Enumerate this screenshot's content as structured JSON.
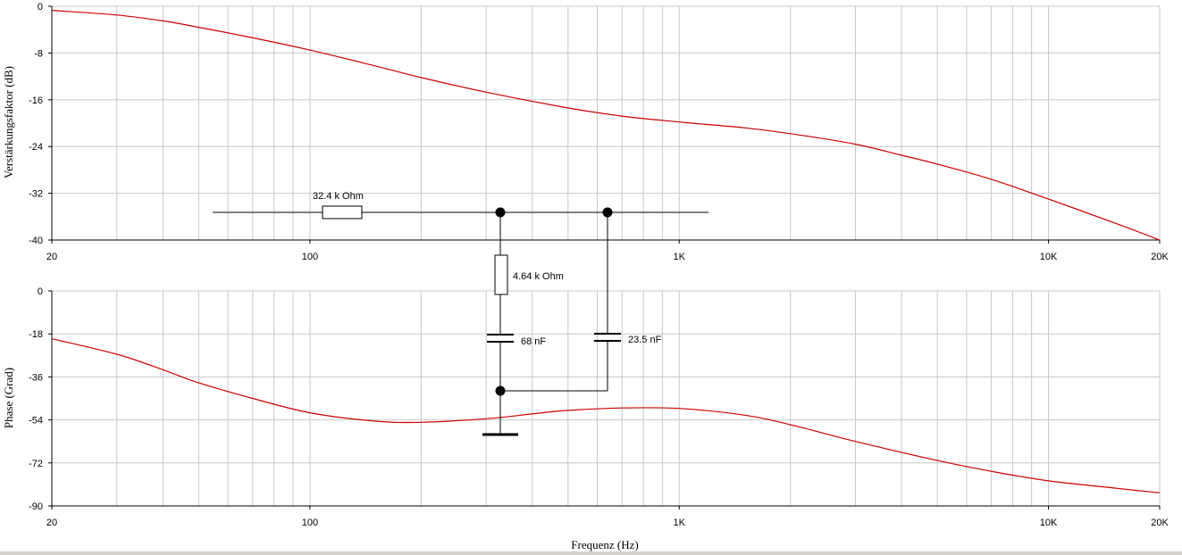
{
  "colors": {
    "curve": "#cc0000",
    "grid": "#c8c8c8",
    "ink": "#000000",
    "background": "#ffffff"
  },
  "chart_data": [
    {
      "type": "line",
      "title": "",
      "xlabel": "",
      "ylabel": "Verstärkungsfaktor (dB)",
      "xscale": "log",
      "xlim": [
        20,
        20000
      ],
      "ylim": [
        -40,
        0
      ],
      "x_ticks": [
        20,
        100,
        1000,
        10000,
        20000
      ],
      "x_tick_labels": [
        "20",
        "100",
        "1K",
        "10K",
        "20K"
      ],
      "y_ticks": [
        0,
        -8,
        -16,
        -24,
        -32,
        -40
      ],
      "y_tick_labels": [
        "0",
        "-8",
        "-16",
        "-24",
        "-32",
        "-40"
      ],
      "grid": true,
      "series": [
        {
          "x": [
            20,
            30,
            40,
            50,
            70,
            100,
            150,
            200,
            300,
            500,
            700,
            1000,
            1500,
            2000,
            3000,
            4000,
            5000,
            7000,
            10000,
            15000,
            20000
          ],
          "y": [
            -0.7,
            -1.5,
            -2.5,
            -3.6,
            -5.4,
            -7.5,
            -10.2,
            -12.2,
            -14.7,
            -17.4,
            -18.8,
            -19.8,
            -20.8,
            -21.8,
            -23.6,
            -25.5,
            -27.0,
            -29.6,
            -33.0,
            -37.0,
            -40.0
          ]
        }
      ]
    },
    {
      "type": "line",
      "title": "",
      "xlabel": "Frequenz (Hz)",
      "ylabel": "Phase (Grad)",
      "xscale": "log",
      "xlim": [
        20,
        20000
      ],
      "ylim": [
        -90,
        0
      ],
      "x_ticks": [
        20,
        100,
        1000,
        10000,
        20000
      ],
      "x_tick_labels": [
        "20",
        "100",
        "1K",
        "10K",
        "20K"
      ],
      "y_ticks": [
        0,
        -18,
        -36,
        -54,
        -72,
        -90
      ],
      "y_tick_labels": [
        "0",
        "-18",
        "-36",
        "-54",
        "-72",
        "-90"
      ],
      "grid": true,
      "series": [
        {
          "x": [
            20,
            30,
            40,
            50,
            70,
            100,
            150,
            200,
            300,
            400,
            500,
            700,
            1000,
            1500,
            2000,
            3000,
            5000,
            7000,
            10000,
            15000,
            20000
          ],
          "y": [
            -20,
            -26.5,
            -33,
            -38.5,
            -45,
            -51,
            -54.5,
            -55,
            -53.5,
            -51.5,
            -50,
            -49,
            -49.2,
            -52,
            -56,
            -63,
            -71,
            -75.5,
            -79.5,
            -82.5,
            -84.5
          ]
        }
      ]
    }
  ],
  "circuit": {
    "labels": {
      "r_series": "32.4 k Ohm",
      "r_shunt": "4.64 k Ohm",
      "c_shunt": "68 nF",
      "c_bypass": "23.5 nF"
    }
  }
}
